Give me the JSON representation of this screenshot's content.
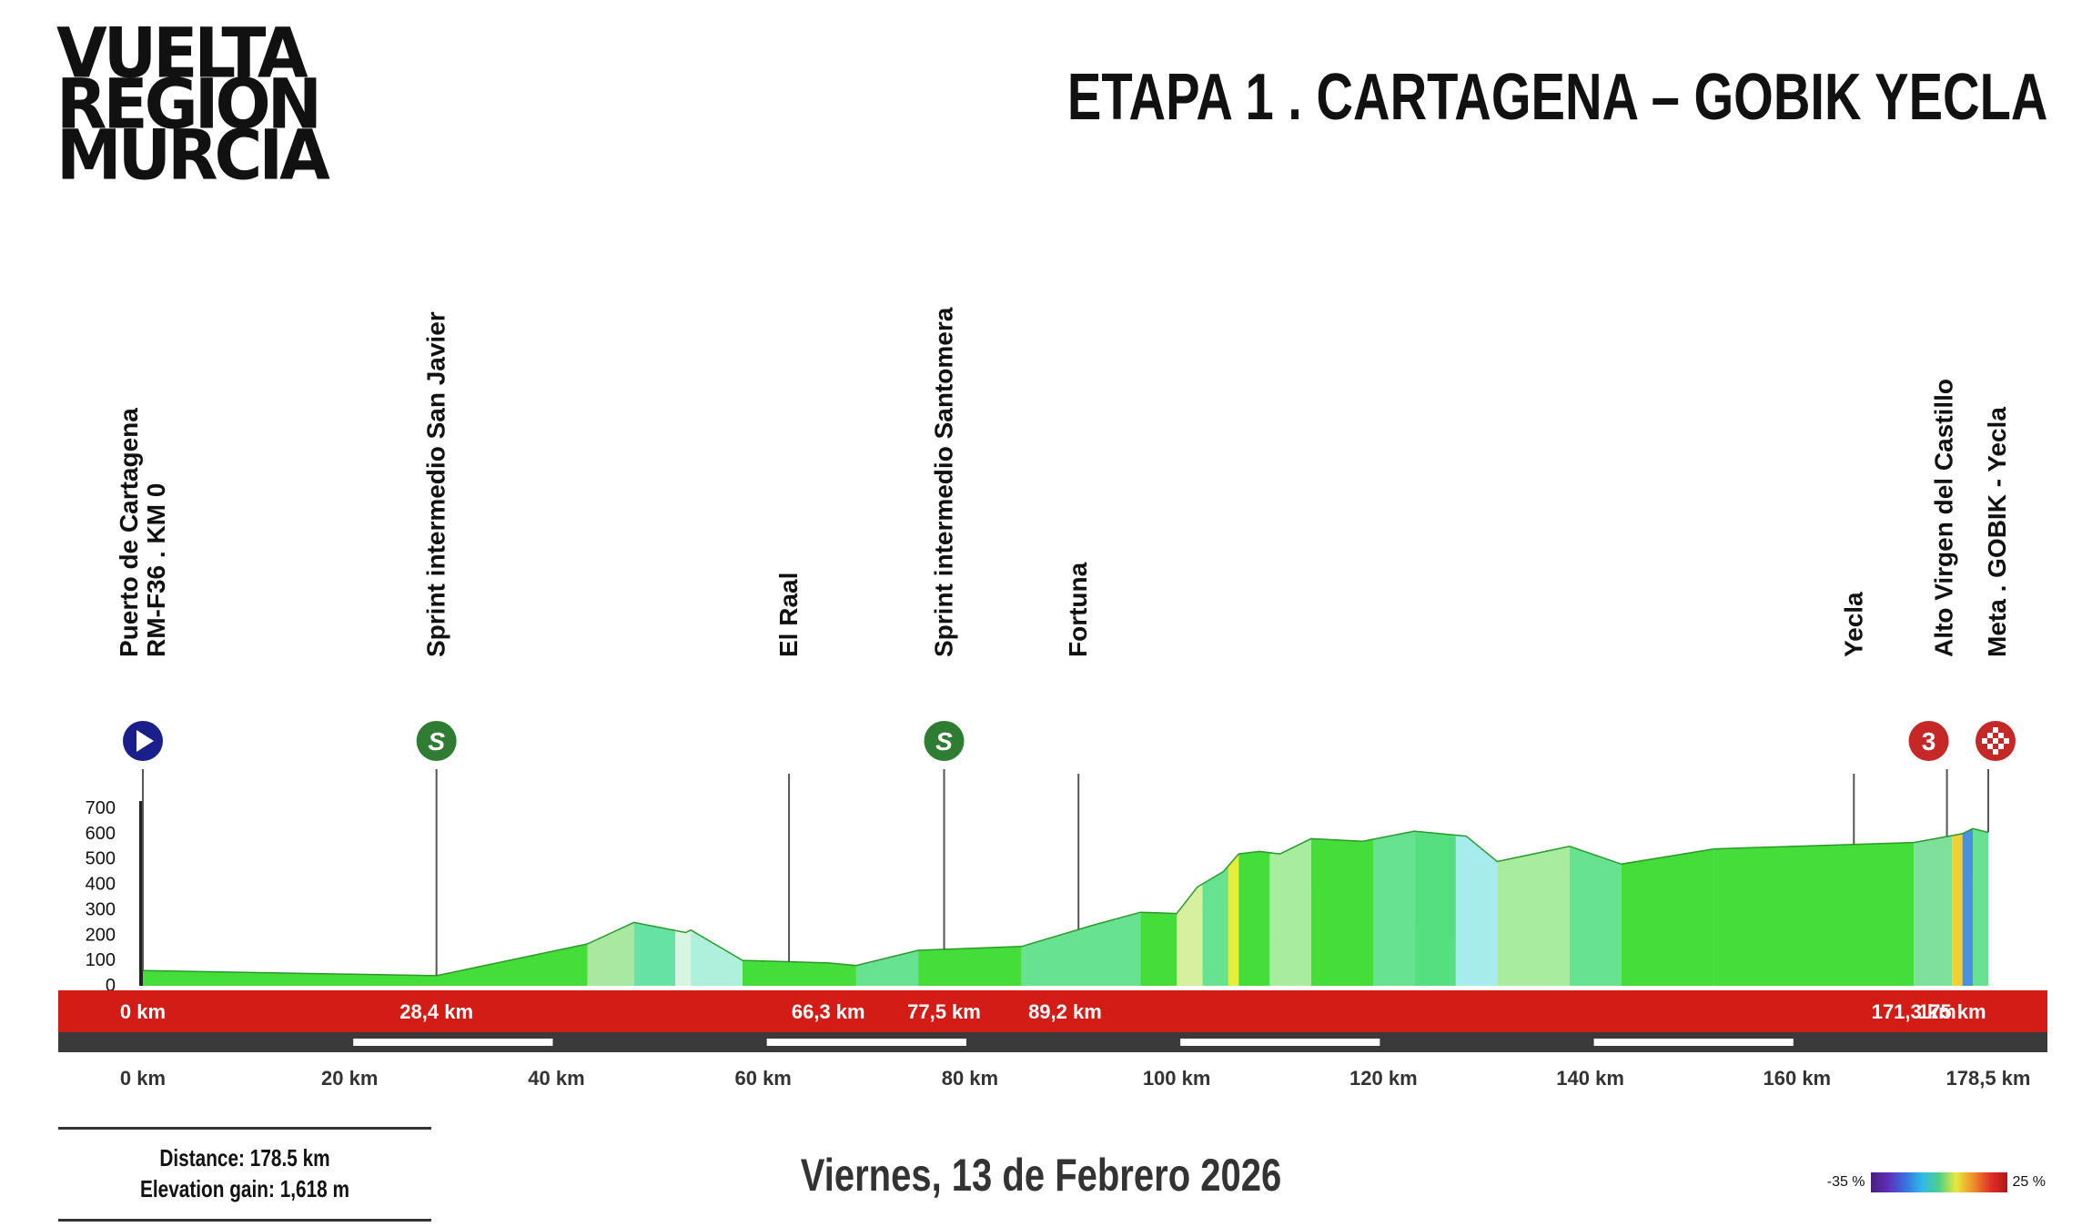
{
  "logo": {
    "line1": "VUELTA",
    "line2": "REGION",
    "line3": "MURCIA"
  },
  "stage_title": "ETAPA 1 . CARTAGENA – GOBIK YECLA",
  "date": "Viernes, 13 de Febrero 2026",
  "info": {
    "distance": "Distance: 178.5 km",
    "elevation": "Elevation gain: 1,618 m"
  },
  "legend": {
    "min": "-35 %",
    "max": "25 %"
  },
  "colors": {
    "ribbon": "#d41c16",
    "ribbon_dark": "#3a3a3a",
    "sprint": "#2e7d32",
    "start": "#1a1f8c",
    "kom": "#c62828"
  },
  "chart_data": {
    "type": "area",
    "title": "ETAPA 1 . CARTAGENA – GOBIK YECLA",
    "xlabel": "",
    "ylabel": "",
    "xlim": [
      0,
      178.5
    ],
    "ylim": [
      0,
      700
    ],
    "y_ticks": [
      0,
      100,
      200,
      300,
      400,
      500,
      600,
      700
    ],
    "x_ticks": [
      {
        "km": 0,
        "label": "0 km"
      },
      {
        "km": 20,
        "label": "20 km"
      },
      {
        "km": 40,
        "label": "40 km"
      },
      {
        "km": 60,
        "label": "60 km"
      },
      {
        "km": 80,
        "label": "80 km"
      },
      {
        "km": 100,
        "label": "100 km"
      },
      {
        "km": 120,
        "label": "120 km"
      },
      {
        "km": 140,
        "label": "140 km"
      },
      {
        "km": 160,
        "label": "160 km"
      },
      {
        "km": 178.5,
        "label": "178,5 km"
      }
    ],
    "profile": [
      [
        0,
        60
      ],
      [
        28.4,
        40
      ],
      [
        43,
        165
      ],
      [
        47.5,
        250
      ],
      [
        52.5,
        210
      ],
      [
        53,
        220
      ],
      [
        58,
        100
      ],
      [
        66.3,
        90
      ],
      [
        69,
        80
      ],
      [
        75,
        140
      ],
      [
        85,
        155
      ],
      [
        92,
        240
      ],
      [
        96.5,
        290
      ],
      [
        100,
        285
      ],
      [
        102,
        390
      ],
      [
        104.5,
        450
      ],
      [
        106,
        520
      ],
      [
        108,
        530
      ],
      [
        110,
        520
      ],
      [
        113,
        580
      ],
      [
        118,
        570
      ],
      [
        123,
        610
      ],
      [
        128,
        590
      ],
      [
        131,
        490
      ],
      [
        138,
        550
      ],
      [
        143,
        480
      ],
      [
        152,
        540
      ],
      [
        171.3,
        565
      ],
      [
        176,
        600
      ],
      [
        177,
        620
      ],
      [
        178.5,
        605
      ]
    ],
    "profile_colors": [
      {
        "from": 0,
        "to": 43,
        "color": "#44dd3a"
      },
      {
        "from": 43,
        "to": 47.5,
        "color": "#a8e8a0"
      },
      {
        "from": 47.5,
        "to": 51.5,
        "color": "#66e2a4"
      },
      {
        "from": 51.5,
        "to": 53,
        "color": "#d8f5e2"
      },
      {
        "from": 53,
        "to": 58,
        "color": "#aef0dc"
      },
      {
        "from": 58,
        "to": 69,
        "color": "#44dd3a"
      },
      {
        "from": 69,
        "to": 75,
        "color": "#66e290"
      },
      {
        "from": 75,
        "to": 85,
        "color": "#44dd3a"
      },
      {
        "from": 85,
        "to": 96.5,
        "color": "#66e290"
      },
      {
        "from": 96.5,
        "to": 100,
        "color": "#44dd3a"
      },
      {
        "from": 100,
        "to": 102.5,
        "color": "#d6f0a0"
      },
      {
        "from": 102.5,
        "to": 105,
        "color": "#66e290"
      },
      {
        "from": 105,
        "to": 106,
        "color": "#e6ee3c"
      },
      {
        "from": 106,
        "to": 109,
        "color": "#44dd3a"
      },
      {
        "from": 109,
        "to": 113,
        "color": "#a8eca0"
      },
      {
        "from": 113,
        "to": 119,
        "color": "#44dd3a"
      },
      {
        "from": 119,
        "to": 123,
        "color": "#66e290"
      },
      {
        "from": 123,
        "to": 127,
        "color": "#55df80"
      },
      {
        "from": 127,
        "to": 131,
        "color": "#a6ecec"
      },
      {
        "from": 131,
        "to": 138,
        "color": "#a8eca0"
      },
      {
        "from": 138,
        "to": 143,
        "color": "#66e290"
      },
      {
        "from": 143,
        "to": 152,
        "color": "#44dd3a"
      },
      {
        "from": 152,
        "to": 171.3,
        "color": "#44dd3a"
      },
      {
        "from": 171.3,
        "to": 175,
        "color": "#7ee09a"
      },
      {
        "from": 175,
        "to": 176,
        "color": "#f2d030"
      },
      {
        "from": 176,
        "to": 177,
        "color": "#4a90e0"
      },
      {
        "from": 177,
        "to": 178.5,
        "color": "#66e290"
      }
    ],
    "ribbon_labels": [
      {
        "km": 0,
        "label": "0 km"
      },
      {
        "km": 28.4,
        "label": "28,4 km"
      },
      {
        "km": 66.3,
        "label": "66,3 km"
      },
      {
        "km": 77.5,
        "label": "77,5 km"
      },
      {
        "km": 89.2,
        "label": "89,2 km"
      },
      {
        "km": 171.3,
        "label": "171,3 km"
      },
      {
        "km": 175,
        "label": "175 km"
      }
    ],
    "waypoints": [
      {
        "km": 0,
        "lines": [
          "Puerto de Cartagena",
          "RM-F36 . KM 0"
        ],
        "icon": "start",
        "icon_text": ""
      },
      {
        "km": 28.4,
        "lines": [
          "Sprint intermedio San Javier"
        ],
        "icon": "sprint",
        "icon_text": "S"
      },
      {
        "km": 62.5,
        "lines": [
          "El Raal"
        ],
        "icon": "",
        "icon_text": ""
      },
      {
        "km": 77.5,
        "lines": [
          "Sprint intermedio Santomera"
        ],
        "icon": "sprint",
        "icon_text": "S"
      },
      {
        "km": 90.5,
        "lines": [
          "Fortuna"
        ],
        "icon": "",
        "icon_text": ""
      },
      {
        "km": 165.5,
        "lines": [
          "Yecla"
        ],
        "icon": "",
        "icon_text": ""
      },
      {
        "km": 174.5,
        "lines": [
          "Alto Virgen del Castillo"
        ],
        "icon": "kom",
        "icon_text": "3"
      },
      {
        "km": 178.5,
        "lines": [
          "Meta . GOBIK - Yecla"
        ],
        "icon": "finish",
        "icon_text": ""
      }
    ]
  }
}
